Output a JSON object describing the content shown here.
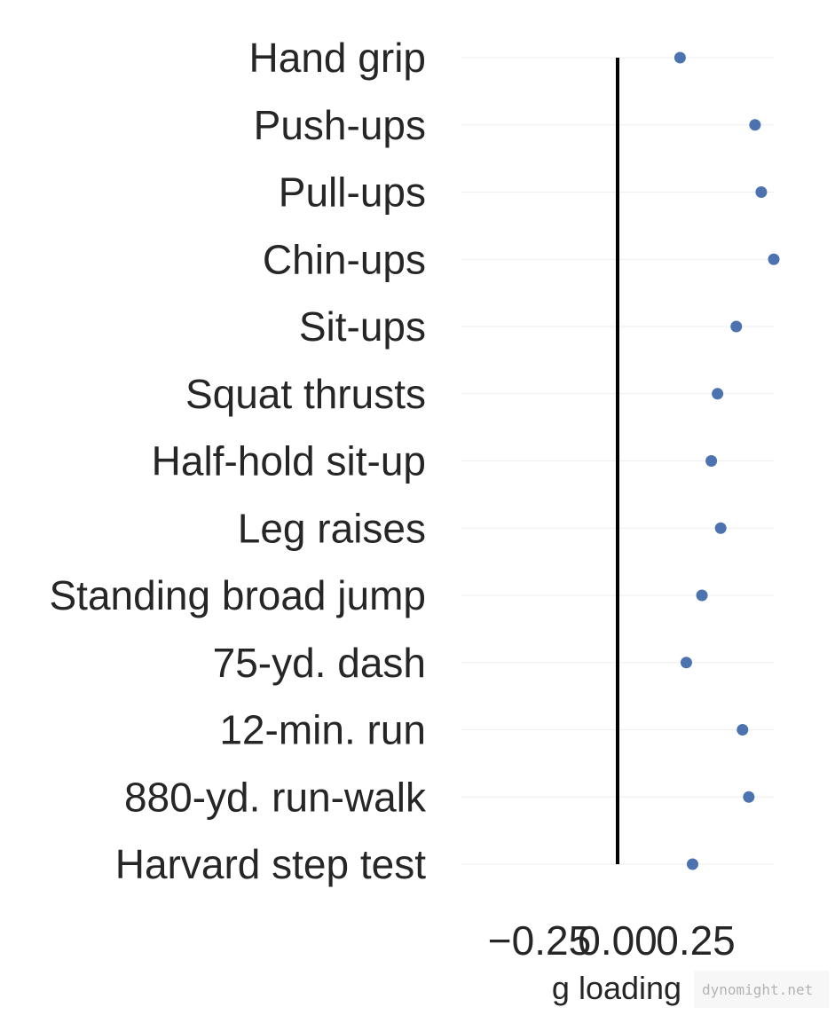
{
  "chart_data": {
    "type": "scatter",
    "orientation": "horizontal",
    "categories": [
      "Hand grip",
      "Push-ups",
      "Pull-ups",
      "Chin-ups",
      "Sit-ups",
      "Squat thrusts",
      "Half-hold sit-up",
      "Leg raises",
      "Standing broad jump",
      "75-yd. dash",
      "12-min. run",
      "880-yd. run-walk",
      "Harvard step test"
    ],
    "values": [
      0.2,
      0.44,
      0.46,
      0.5,
      0.38,
      0.32,
      0.3,
      0.33,
      0.27,
      0.22,
      0.4,
      0.42,
      0.24
    ],
    "xlabel": "g loading",
    "ylabel": "",
    "xlim": [
      -0.5,
      0.5
    ],
    "xticks": [
      -0.25,
      0.0,
      0.25
    ],
    "xtick_labels": [
      "−0.25",
      "0.00",
      "0.25"
    ],
    "reference_line_x": 0.0,
    "grid": "horizontal, faint",
    "point_color": "#4c72b0",
    "reference_line_color": "#000000",
    "title": ""
  },
  "watermark": "dynomight.net"
}
